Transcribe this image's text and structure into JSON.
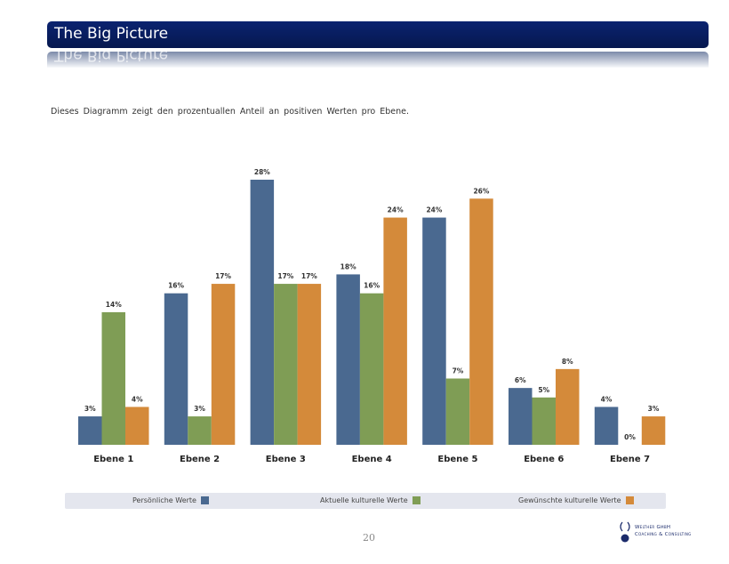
{
  "header": {
    "title": "The Big Picture",
    "reflection": "The Big Picture"
  },
  "description": "Dieses Diagramm zeigt den prozentuallen Anteil an positiven Werten pro Ebene.",
  "colors": {
    "persoenlich": "#4a6990",
    "aktuell": "#7f9d55",
    "gewuenscht": "#d48a3a"
  },
  "chart_data": {
    "type": "bar",
    "categories": [
      "Ebene 1",
      "Ebene 2",
      "Ebene 3",
      "Ebene 4",
      "Ebene 5",
      "Ebene 6",
      "Ebene 7"
    ],
    "series": [
      {
        "name": "Persönliche Werte",
        "values": [
          3,
          16,
          28,
          18,
          24,
          6,
          4
        ],
        "labels": [
          "3%",
          "16%",
          "28%",
          "18%",
          "24%",
          "6%",
          "4%"
        ]
      },
      {
        "name": "Aktuelle kulturelle Werte",
        "values": [
          14,
          3,
          17,
          16,
          7,
          5,
          0
        ],
        "labels": [
          "14%",
          "3%",
          "17%",
          "16%",
          "7%",
          "5%",
          "0%"
        ]
      },
      {
        "name": "Gewünschte kulturelle Werte",
        "values": [
          4,
          17,
          17,
          24,
          26,
          8,
          3
        ],
        "labels": [
          "4%",
          "17%",
          "17%",
          "24%",
          "26%",
          "8%",
          "3%"
        ]
      }
    ],
    "ylim": [
      0,
      28
    ],
    "grid": false,
    "legend": "bottom"
  },
  "legend": {
    "items": [
      "Persönliche Werte",
      "Aktuelle kulturelle Werte",
      "Gewünschte kulturelle Werte"
    ]
  },
  "page_number": "20",
  "logo": {
    "line1": "Welther GmbH",
    "line2": "Coaching & Consulting"
  }
}
